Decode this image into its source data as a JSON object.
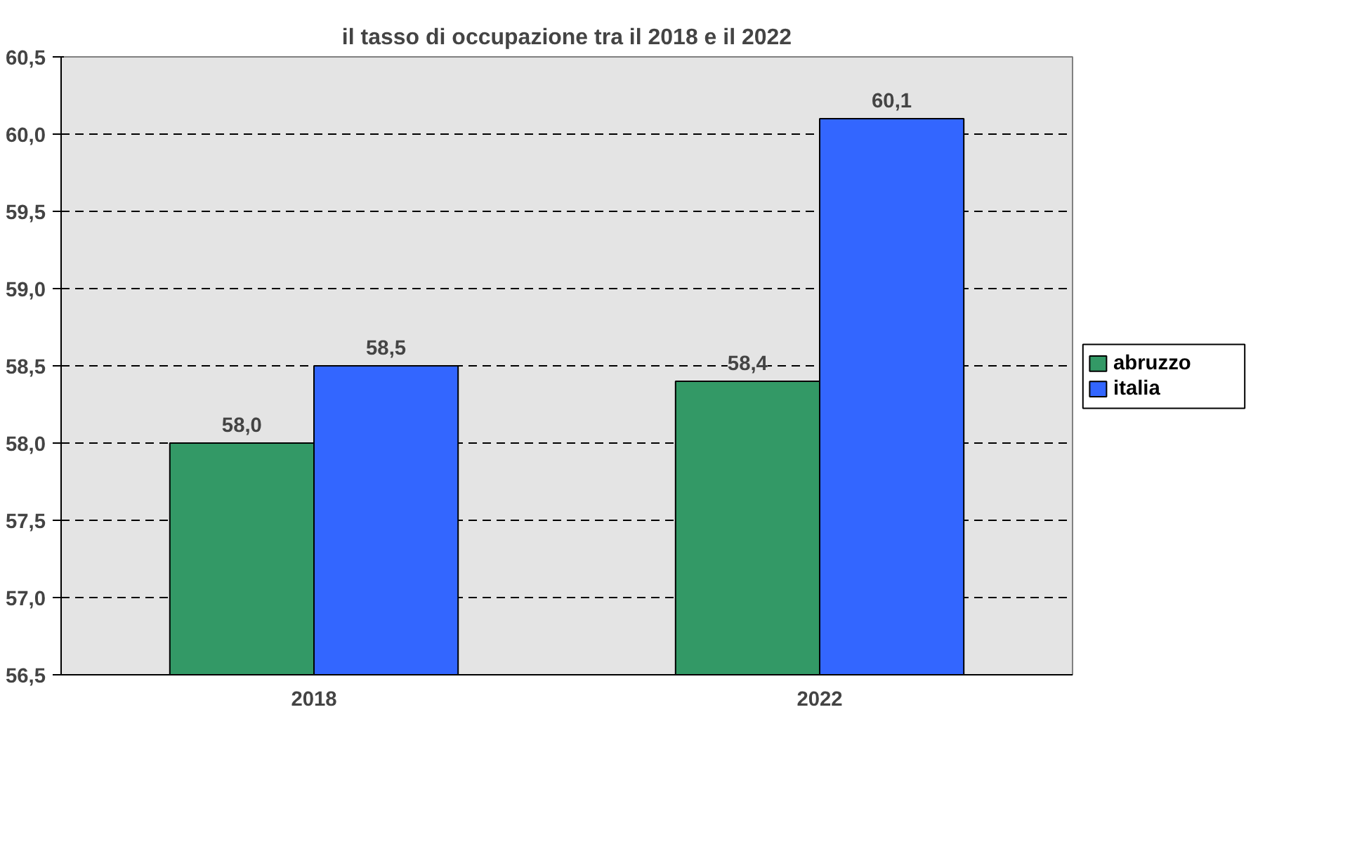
{
  "chart_data": {
    "type": "bar",
    "title": "il tasso di occupazione tra il 2018 e il 2022",
    "categories": [
      "2018",
      "2022"
    ],
    "series": [
      {
        "name": "abruzzo",
        "color": "#339966",
        "values": [
          58.0,
          58.4
        ],
        "value_labels": [
          "58,0",
          "58,4"
        ]
      },
      {
        "name": "italia",
        "color": "#3366ff",
        "values": [
          58.5,
          60.1
        ],
        "value_labels": [
          "58,5",
          "60,1"
        ]
      }
    ],
    "ylim": [
      56.5,
      60.5
    ],
    "yticks": [
      {
        "value": 56.5,
        "label": "56,5"
      },
      {
        "value": 57.0,
        "label": "57,0"
      },
      {
        "value": 57.5,
        "label": "57,5"
      },
      {
        "value": 58.0,
        "label": "58,0"
      },
      {
        "value": 58.5,
        "label": "58,5"
      },
      {
        "value": 59.0,
        "label": "59,0"
      },
      {
        "value": 59.5,
        "label": "59,5"
      },
      {
        "value": 60.0,
        "label": "60,0"
      },
      {
        "value": 60.5,
        "label": "60,5"
      }
    ],
    "grid": "y",
    "legend": "right"
  }
}
